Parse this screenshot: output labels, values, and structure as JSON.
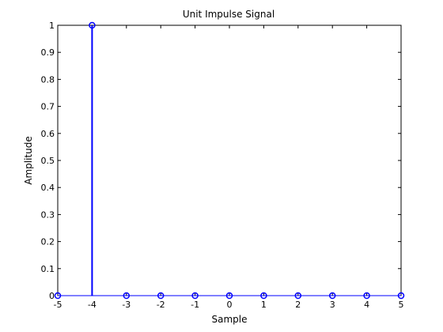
{
  "chart_data": {
    "type": "stem",
    "title": "Unit Impulse Signal",
    "xlabel": "Sample",
    "ylabel": "Amplitude",
    "xlim": [
      -5,
      5
    ],
    "ylim": [
      0,
      1
    ],
    "x_ticks": [
      "-5",
      "-4",
      "-3",
      "-2",
      "-1",
      "0",
      "1",
      "2",
      "3",
      "4",
      "5"
    ],
    "y_ticks": [
      "0",
      "0.1",
      "0.2",
      "0.3",
      "0.4",
      "0.5",
      "0.6",
      "0.7",
      "0.8",
      "0.9",
      "1"
    ],
    "grid": false,
    "series": [
      {
        "x": [
          -5,
          -4,
          -3,
          -2,
          -1,
          0,
          1,
          2,
          3,
          4,
          5
        ],
        "y": [
          0,
          1,
          0,
          0,
          0,
          0,
          0,
          0,
          0,
          0,
          0
        ],
        "color": "#0000ff",
        "marker": "circle-open"
      }
    ]
  }
}
